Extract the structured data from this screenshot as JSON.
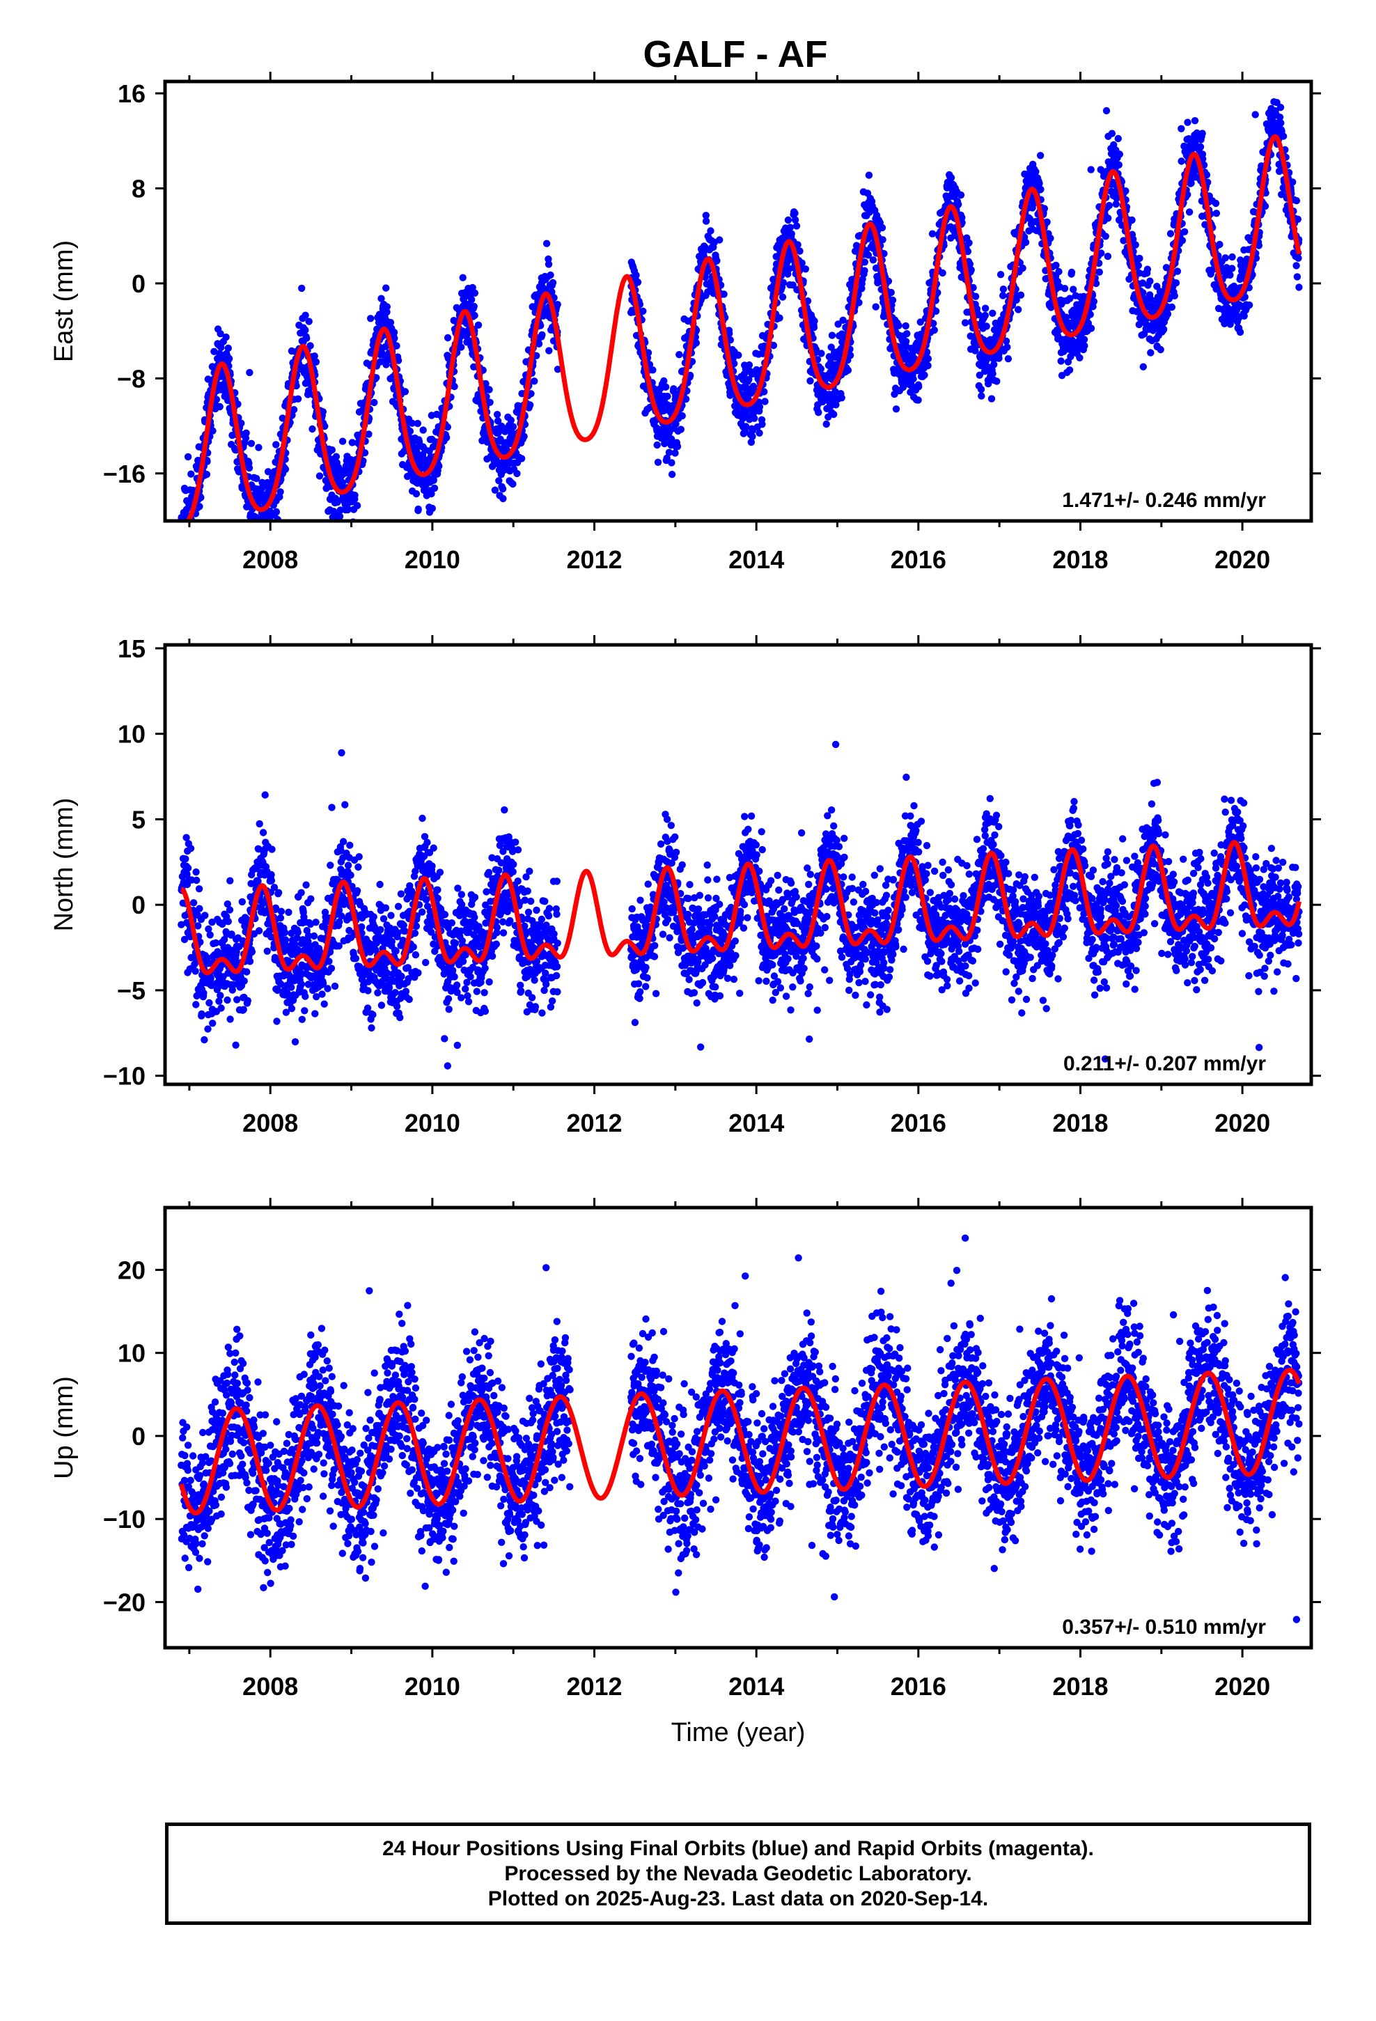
{
  "title": "GALF - AF",
  "colors": {
    "points": "#0000ff",
    "model": "#ff0000",
    "frame": "#000000"
  },
  "chart_data": [
    {
      "type": "scatter",
      "ylabel": "East (mm)",
      "xlabel": "",
      "xlim": [
        2006.7,
        2020.85
      ],
      "ylim": [
        -20,
        17
      ],
      "yticks": [
        -16,
        -8,
        0,
        8,
        16
      ],
      "xticks": [
        2008,
        2010,
        2012,
        2014,
        2016,
        2018,
        2020
      ],
      "rate_label": "1.471+/- 0.246 mm/yr",
      "data_range": [
        2006.9,
        2020.7
      ],
      "gaps": [
        [
          2011.55,
          2012.45
        ]
      ],
      "model": {
        "trend": 1.471,
        "intercept": -5.3,
        "amp": 6.5,
        "peak_phase": 0.4,
        "semi_amp": 1.0,
        "scatter": 1.6,
        "noise_seed": 11
      }
    },
    {
      "type": "scatter",
      "ylabel": "North (mm)",
      "xlabel": "",
      "xlim": [
        2006.7,
        2020.85
      ],
      "ylim": [
        -10.5,
        15.2
      ],
      "yticks": [
        -10,
        -5,
        0,
        5,
        10,
        15
      ],
      "xticks": [
        2008,
        2010,
        2012,
        2014,
        2016,
        2018,
        2020
      ],
      "rate_label": "0.211+/- 0.207 mm/yr",
      "data_range": [
        2006.9,
        2020.7
      ],
      "gaps": [
        [
          2011.55,
          2012.45
        ]
      ],
      "model": {
        "trend": 0.211,
        "intercept": -1.0,
        "amp": 2.1,
        "peak_phase": 0.9,
        "semi_amp": 1.2,
        "scatter": 1.6,
        "noise_seed": 23
      }
    },
    {
      "type": "scatter",
      "ylabel": "Up (mm)",
      "xlabel": "Time (year)",
      "xlim": [
        2006.7,
        2020.85
      ],
      "ylim": [
        -25.5,
        27.5
      ],
      "yticks": [
        -20,
        -10,
        0,
        10,
        20
      ],
      "xticks": [
        2008,
        2010,
        2012,
        2014,
        2016,
        2018,
        2020
      ],
      "rate_label": "0.357+/- 0.510 mm/yr",
      "data_range": [
        2006.9,
        2020.7
      ],
      "gaps": [
        [
          2011.7,
          2012.45
        ]
      ],
      "model": {
        "trend": 0.357,
        "intercept": -0.8,
        "amp": 6.2,
        "peak_phase": 0.58,
        "semi_amp": 0.0,
        "scatter": 4.2,
        "noise_seed": 37
      }
    }
  ],
  "footer": {
    "line1": "24 Hour Positions Using Final Orbits (blue) and Rapid Orbits (magenta).",
    "line2": "Processed by the Nevada Geodetic Laboratory.",
    "line3": "Plotted on 2025-Aug-23. Last data on 2020-Sep-14."
  }
}
